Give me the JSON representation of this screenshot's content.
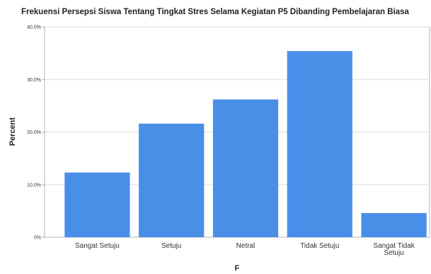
{
  "chart_data": {
    "type": "bar",
    "title": "Frekuensi Persepsi Siswa Tentang Tingkat Stres Selama Kegiatan P5 Dibanding Pembelajaran Biasa",
    "xlabel": "F",
    "ylabel": "Percent",
    "categories": [
      "Sangat Setuju",
      "Setuju",
      "Netral",
      "Tidak Setuju",
      "Sangat Tidak Setuju"
    ],
    "values": [
      12.3,
      21.6,
      26.2,
      35.4,
      4.6
    ],
    "ylim": [
      0,
      40
    ],
    "yticks": [
      0,
      10,
      20,
      30,
      40
    ],
    "ytick_labels": [
      "0%",
      "10.0%",
      "20.0%",
      "30.0%",
      "40.0%"
    ],
    "grid": true,
    "bar_color": "#4a8fe7"
  }
}
